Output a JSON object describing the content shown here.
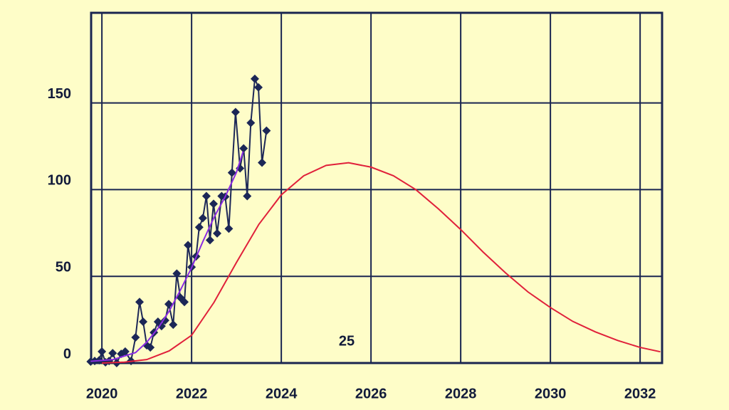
{
  "chart_data": {
    "type": "line",
    "annotation": "25",
    "xlim": [
      2019.76,
      2032.49
    ],
    "ylim": [
      0,
      202
    ],
    "xticks": [
      2020,
      2022,
      2024,
      2026,
      2028,
      2030,
      2032
    ],
    "yticks": [
      0,
      50,
      100,
      150
    ],
    "grid": true,
    "series": [
      {
        "color": "#1c2757",
        "marker": "diamond",
        "x": [
          2019.75,
          2019.84,
          2019.94,
          2020.0,
          2020.08,
          2020.16,
          2020.24,
          2020.33,
          2020.43,
          2020.52,
          2020.65,
          2020.75,
          2020.84,
          2020.92,
          2021.0,
          2021.08,
          2021.16,
          2021.25,
          2021.33,
          2021.41,
          2021.49,
          2021.59,
          2021.67,
          2021.75,
          2021.84,
          2021.92,
          2022.0,
          2022.1,
          2022.17,
          2022.25,
          2022.33,
          2022.41,
          2022.49,
          2022.57,
          2022.67,
          2022.75,
          2022.83,
          2022.9,
          2022.98,
          2023.08,
          2023.16,
          2023.24,
          2023.32,
          2023.41,
          2023.49,
          2023.57,
          2023.67
        ],
        "values": [
          0.8,
          1.2,
          1.6,
          6.6,
          0.4,
          1.2,
          5.7,
          0,
          5.3,
          6.6,
          1.2,
          14.8,
          35.2,
          23.8,
          10.2,
          9.0,
          17.6,
          23.8,
          21.3,
          24.6,
          34.0,
          22.1,
          51.6,
          37.7,
          35.2,
          68.0,
          55.3,
          61.5,
          78.3,
          83.6,
          96.3,
          70.9,
          91.8,
          74.8,
          96.3,
          95.9,
          77.5,
          109.8,
          144.7,
          112.3,
          123.8,
          96.3,
          138.5,
          163.9,
          159.0,
          115.6,
          134.0
        ]
      },
      {
        "color": "#8a2be2",
        "x": [
          2019.75,
          2020.25,
          2020.75,
          2021.0,
          2021.25,
          2021.5,
          2021.75,
          2022.0,
          2022.25,
          2022.5,
          2022.75,
          2023.0,
          2023.15
        ],
        "values": [
          1,
          2,
          6,
          12,
          20,
          30,
          42,
          55,
          70,
          84,
          96,
          110,
          122
        ]
      },
      {
        "color": "#e0203a",
        "x": [
          2020.0,
          2020.5,
          2021.0,
          2021.5,
          2022.0,
          2022.5,
          2023.0,
          2023.5,
          2024.0,
          2024.5,
          2025.0,
          2025.5,
          2026.0,
          2026.5,
          2027.0,
          2027.5,
          2028.0,
          2028.5,
          2029.0,
          2029.5,
          2030.0,
          2030.5,
          2031.0,
          2031.5,
          2032.0,
          2032.45
        ],
        "values": [
          0,
          0.5,
          2,
          7,
          16,
          35,
          58,
          80,
          97,
          108,
          114,
          115.5,
          113,
          108,
          100,
          89,
          77,
          64,
          52,
          41,
          32,
          24,
          18,
          13,
          9,
          6.5
        ]
      }
    ]
  }
}
